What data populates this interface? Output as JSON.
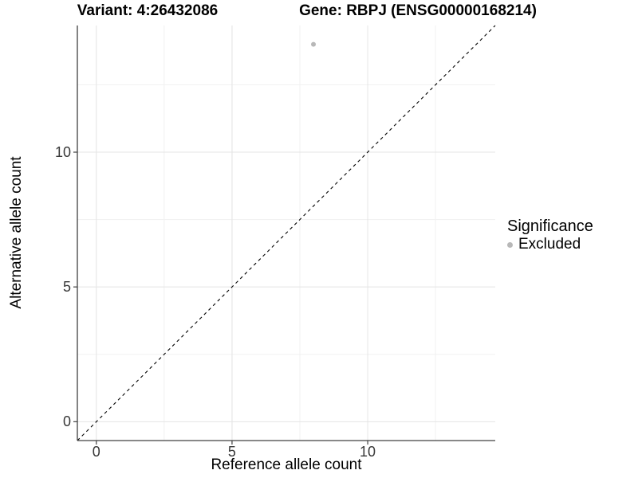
{
  "header": {
    "title_left": "Variant: 4:26432086",
    "title_right": "Gene: RBPJ (ENSG00000168214)"
  },
  "chart_data": {
    "type": "scatter",
    "xlabel": "Reference allele count",
    "ylabel": "Alternative allele count",
    "xlim": [
      -0.7,
      14.7
    ],
    "ylim": [
      -0.7,
      14.7
    ],
    "x_ticks": [
      0,
      5,
      10
    ],
    "y_ticks": [
      0,
      5,
      10
    ],
    "x_minor_ticks": [
      2.5,
      7.5,
      12.5
    ],
    "y_minor_ticks": [
      2.5,
      7.5,
      12.5
    ],
    "grid": "on",
    "points": [
      {
        "x": 8,
        "y": 14,
        "series": "Excluded"
      }
    ],
    "identity_line": {
      "style": "dashed",
      "slope": 1,
      "intercept": 0,
      "color": "#000000"
    },
    "point_color": "#b8b8b8",
    "point_radius": 3,
    "grid_major_color": "#e4e4e4",
    "grid_minor_color": "#f1f1f1",
    "axis_color": "#404040",
    "legend": {
      "title": "Significance",
      "position": "right",
      "items": [
        {
          "label": "Excluded",
          "color": "#b8b8b8"
        }
      ]
    }
  }
}
